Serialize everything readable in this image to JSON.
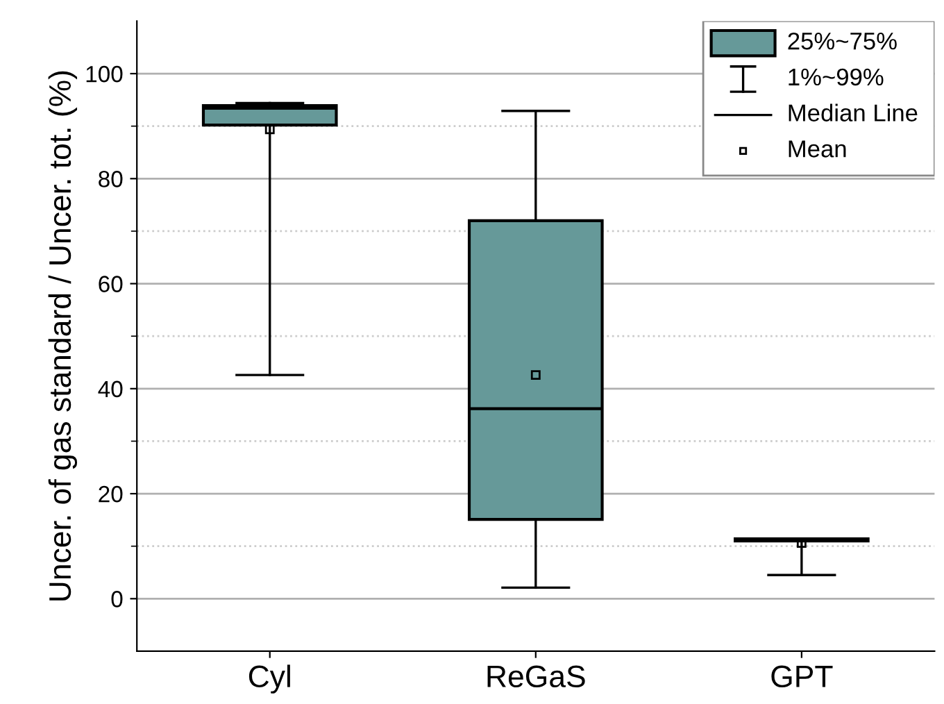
{
  "chart_data": {
    "type": "box",
    "ylabel": "Uncer. of gas standard / Uncer. tot. (%)",
    "categories": [
      "Cyl",
      "ReGaS",
      "GPT"
    ],
    "boxes": [
      {
        "low": 42.6,
        "q1": 90.2,
        "median": 93.4,
        "q3": 93.9,
        "high": 94.4,
        "mean": 89.4
      },
      {
        "low": 2.1,
        "q1": 15.1,
        "median": 36.2,
        "q3": 72.0,
        "high": 92.9,
        "mean": 42.6
      },
      {
        "low": 4.5,
        "q1": 11.0,
        "median": 11.2,
        "q3": 11.4,
        "high": 11.4,
        "mean": 10.6
      }
    ],
    "color": "#669999",
    "ylim": [
      -10,
      110
    ],
    "yticks": [
      0,
      {
        "value": 10,
        "label": null
      },
      20,
      {
        "value": 30,
        "label": null
      },
      40,
      {
        "value": 50,
        "label": null
      },
      60,
      {
        "value": 70,
        "label": null
      },
      80,
      {
        "value": 90,
        "label": null
      },
      100
    ],
    "grid": "y",
    "annotations": [
      "25%~75%",
      "1%~99%",
      "Median Line",
      "Mean"
    ]
  }
}
